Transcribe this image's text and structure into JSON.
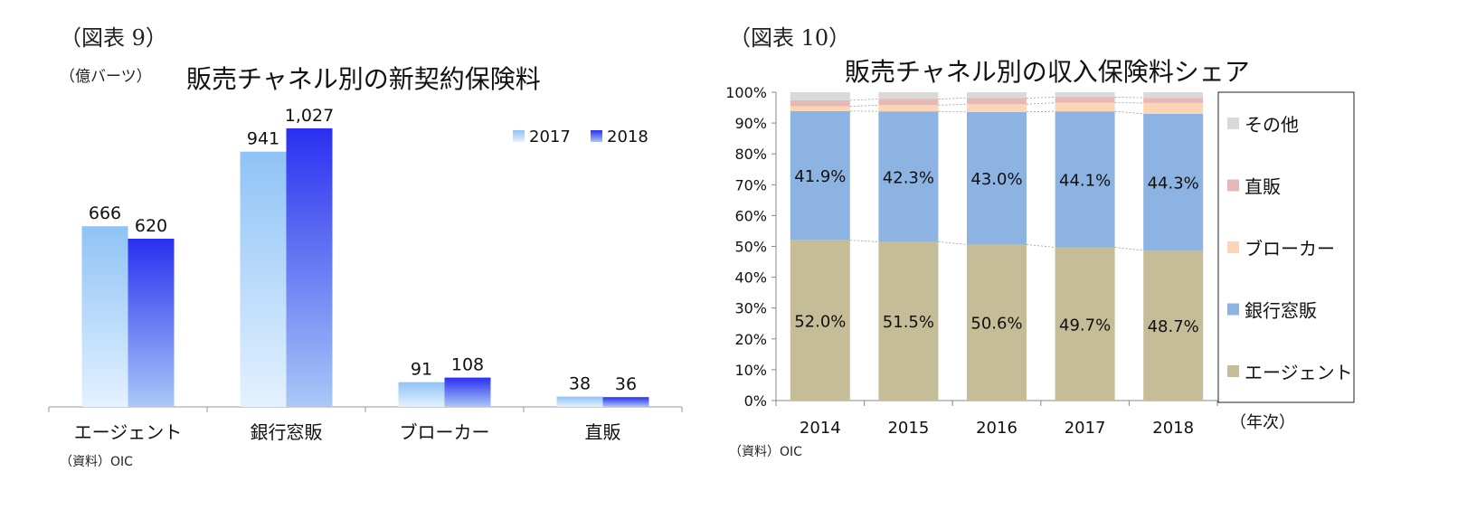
{
  "left": {
    "figure_label": "（図表 9）",
    "unit": "（億バーツ）",
    "source": "（資料）OIC"
  },
  "right": {
    "figure_label": "（図表 10）",
    "source": "（資料）OIC",
    "x_unit": "（年次）"
  },
  "colors": {
    "y2017_top": "#8fc3f6",
    "y2017_bottom": "#e4f1ff",
    "y2018_top": "#2a2ff0",
    "y2018_bottom": "#aac8f7",
    "agent": "#c4bd97",
    "bank": "#8db3e2",
    "broker": "#fbd5b5",
    "direct": "#e6b9b8",
    "other": "#d9d9d9"
  },
  "chart_data": [
    {
      "type": "bar",
      "title": "販売チャネル別の新契約保険料",
      "ylabel": "（億バーツ）",
      "categories": [
        "エージェント",
        "銀行窓販",
        "ブローカー",
        "直販"
      ],
      "series": [
        {
          "name": "2017",
          "values": [
            666,
            941,
            91,
            38
          ],
          "labels": [
            "666",
            "941",
            "91",
            "38"
          ]
        },
        {
          "name": "2018",
          "values": [
            620,
            1027,
            108,
            36
          ],
          "labels": [
            "620",
            "1,027",
            "108",
            "36"
          ]
        }
      ],
      "ylim": [
        0,
        1100
      ],
      "legend": "top-right",
      "grid": false
    },
    {
      "type": "bar",
      "stacked": true,
      "percent": true,
      "title": "販売チャネル別の収入保険料シェア",
      "xlabel": "（年次）",
      "categories": [
        "2014",
        "2015",
        "2016",
        "2017",
        "2018"
      ],
      "y_ticks": [
        "0%",
        "10%",
        "20%",
        "30%",
        "40%",
        "50%",
        "60%",
        "70%",
        "80%",
        "90%",
        "100%"
      ],
      "ylim": [
        0,
        100
      ],
      "series": [
        {
          "name": "エージェント",
          "values": [
            52.0,
            51.5,
            50.6,
            49.7,
            48.7
          ],
          "labels": [
            "52.0%",
            "51.5%",
            "50.6%",
            "49.7%",
            "48.7%"
          ]
        },
        {
          "name": "銀行窓販",
          "values": [
            41.9,
            42.3,
            43.0,
            44.1,
            44.3
          ],
          "labels": [
            "41.9%",
            "42.3%",
            "43.0%",
            "44.1%",
            "44.3%"
          ]
        },
        {
          "name": "ブローカー",
          "values": [
            1.5,
            2.0,
            2.5,
            2.8,
            3.5
          ]
        },
        {
          "name": "直販",
          "values": [
            2.0,
            2.0,
            2.0,
            1.8,
            1.7
          ]
        },
        {
          "name": "その他",
          "values": [
            2.6,
            2.2,
            1.9,
            1.6,
            1.8
          ]
        }
      ],
      "legend": "right",
      "grid": false
    }
  ]
}
